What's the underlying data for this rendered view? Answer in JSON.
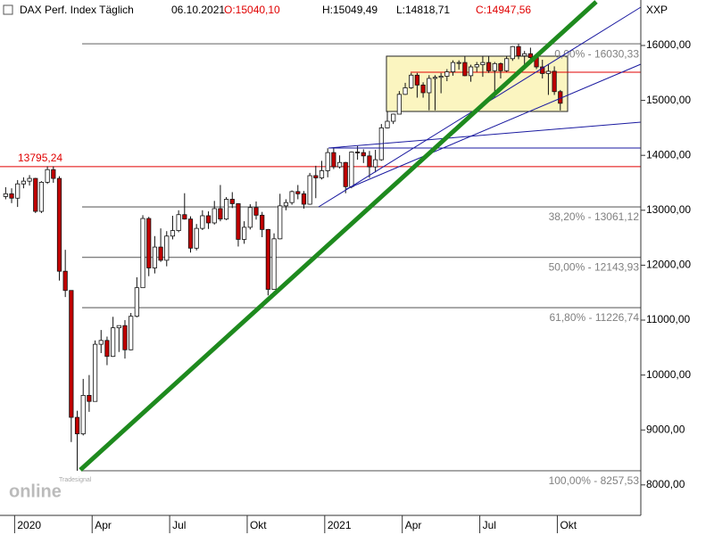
{
  "chart_data": {
    "type": "candlestick",
    "title": "DAX Perf. Index Täglich",
    "date": "06.10.2021",
    "quote": {
      "open": "O:15040,10",
      "high": "H:15049,49",
      "low": "L:14818,71",
      "close": "C:14947,56"
    },
    "y_axis_label": "XXP",
    "watermark": {
      "small": "Tradesignal",
      "big": "online"
    },
    "up_color": "#ffffff",
    "down_color": "#c00000",
    "ylim": [
      7445,
      16828
    ],
    "yticks": [
      {
        "value": 8000,
        "label": "8000,00"
      },
      {
        "value": 9000,
        "label": "9000,00"
      },
      {
        "value": 10000,
        "label": "10000,00"
      },
      {
        "value": 11000,
        "label": "11000,00"
      },
      {
        "value": 12000,
        "label": "12000,00"
      },
      {
        "value": 13000,
        "label": "13000,00"
      },
      {
        "value": 14000,
        "label": "14000,00"
      },
      {
        "value": 15000,
        "label": "15000,00"
      },
      {
        "value": 16000,
        "label": "16000,00"
      }
    ],
    "categories": [
      null,
      null,
      "2020",
      null,
      null,
      null,
      null,
      null,
      null,
      null,
      null,
      null,
      null,
      null,
      null,
      "Apr",
      null,
      null,
      null,
      null,
      null,
      null,
      null,
      null,
      null,
      null,
      null,
      null,
      "Jul",
      null,
      null,
      null,
      null,
      null,
      null,
      null,
      null,
      null,
      null,
      null,
      null,
      "Okt",
      null,
      null,
      null,
      null,
      null,
      null,
      null,
      null,
      null,
      null,
      null,
      null,
      "2021",
      null,
      null,
      null,
      null,
      null,
      null,
      null,
      null,
      null,
      null,
      null,
      null,
      "Apr",
      null,
      null,
      null,
      null,
      null,
      null,
      null,
      null,
      null,
      null,
      null,
      null,
      "Jul",
      null,
      null,
      null,
      null,
      null,
      null,
      null,
      null,
      null,
      null,
      null,
      null,
      "Okt",
      null,
      null,
      null,
      null,
      null,
      null,
      null,
      null,
      null,
      null,
      null,
      null,
      null
    ],
    "open": [
      13250,
      13300,
      13220,
      13480,
      13530,
      13580,
      12980,
      13510,
      13740,
      13580,
      11890,
      11540,
      9230,
      8930,
      9630,
      9520,
      10560,
      10630,
      10340,
      10860,
      10900,
      10460,
      11070,
      11590,
      12850,
      11950,
      12330,
      12090,
      12530,
      12630,
      12920,
      12840,
      12310,
      12670,
      12900,
      12770,
      13030,
      12840,
      13200,
      13120,
      12470,
      12690,
      13050,
      12910,
      12650,
      11560,
      12480,
      13080,
      13140,
      13340,
      13300,
      13110,
      13630,
      13590,
      13720,
      14050,
      13790,
      13870,
      13430,
      14060,
      14050,
      13990,
      13790,
      13920,
      14500,
      14620,
      14750,
      15110,
      15230,
      15460,
      15280,
      15140,
      15400,
      15420,
      15440,
      15520,
      15690,
      15690,
      15450,
      15610,
      15650,
      15690,
      15540,
      15670,
      15540,
      15760,
      15980,
      15810,
      15850,
      15780,
      15610,
      15490,
      15530,
      15160,
      null,
      null,
      null,
      null,
      null,
      null,
      null,
      null,
      null,
      null,
      null,
      null,
      null
    ],
    "high": [
      13420,
      13400,
      13550,
      13600,
      13640,
      13590,
      13530,
      13800,
      13800,
      13620,
      12280,
      11540,
      9350,
      9930,
      10000,
      10630,
      10820,
      10700,
      11060,
      10900,
      11000,
      11130,
      11780,
      12910,
      12880,
      12530,
      12670,
      12620,
      12900,
      13000,
      13310,
      12890,
      12750,
      13000,
      12980,
      13170,
      13460,
      13240,
      13330,
      13130,
      12800,
      13110,
      13160,
      12970,
      12660,
      12580,
      13300,
      13200,
      13360,
      13460,
      13350,
      13680,
      13810,
      13900,
      14130,
      14130,
      14000,
      13880,
      14070,
      14170,
      14110,
      14080,
      14100,
      14570,
      14800,
      14760,
      15170,
      15320,
      15500,
      15500,
      15330,
      15460,
      15460,
      15500,
      15570,
      15730,
      15730,
      15800,
      15650,
      15700,
      15810,
      15800,
      15700,
      15690,
      15800,
      15990,
      16030,
      15900,
      15960,
      15810,
      15740,
      15660,
      15620,
      15190,
      null,
      null,
      null,
      null,
      null,
      null,
      null,
      null,
      null,
      null,
      null,
      null,
      null
    ],
    "low": [
      13200,
      13130,
      13060,
      13400,
      13450,
      12950,
      12950,
      13480,
      13500,
      11720,
      11420,
      8780,
      8258,
      8900,
      9330,
      9520,
      10400,
      10180,
      10330,
      10420,
      10300,
      10450,
      11050,
      11590,
      11800,
      11850,
      12060,
      11980,
      12470,
      12600,
      12830,
      12230,
      12270,
      12640,
      12660,
      12740,
      12800,
      12820,
      13040,
      12340,
      12390,
      12650,
      12830,
      12510,
      11450,
      11560,
      12470,
      13000,
      13100,
      13200,
      13030,
      13100,
      13220,
      13560,
      13600,
      13750,
      13760,
      13310,
      13400,
      13920,
      13860,
      13590,
      13690,
      13900,
      14490,
      14570,
      14750,
      15100,
      15210,
      15050,
      15050,
      14820,
      14820,
      15130,
      15350,
      15450,
      15560,
      15440,
      15340,
      15520,
      15430,
      15500,
      15060,
      15400,
      15520,
      15720,
      15750,
      15650,
      15740,
      15570,
      15400,
      15100,
      15100,
      14818,
      null,
      null,
      null,
      null,
      null,
      null,
      null,
      null,
      null,
      null,
      null,
      null,
      null
    ],
    "close": [
      13300,
      13220,
      13480,
      13530,
      13580,
      12980,
      13510,
      13740,
      13580,
      11890,
      11540,
      9230,
      8930,
      9630,
      9520,
      10560,
      10630,
      10340,
      10860,
      10900,
      10460,
      11070,
      11590,
      12850,
      11950,
      12330,
      12090,
      12530,
      12630,
      12920,
      12840,
      12310,
      12670,
      12900,
      12770,
      13030,
      12840,
      13200,
      13120,
      12470,
      12690,
      13050,
      12910,
      12650,
      11560,
      12480,
      13080,
      13140,
      13340,
      13300,
      13110,
      13630,
      13590,
      13720,
      14050,
      13790,
      13870,
      13430,
      14060,
      14050,
      13990,
      13790,
      13920,
      14500,
      14620,
      14750,
      15110,
      15230,
      15460,
      15280,
      15140,
      15400,
      15420,
      15440,
      15520,
      15690,
      15690,
      15450,
      15610,
      15650,
      15690,
      15540,
      15670,
      15540,
      15760,
      15980,
      15810,
      15850,
      15780,
      15610,
      15490,
      15530,
      15160,
      14948,
      null,
      null,
      null,
      null,
      null,
      null,
      null,
      null,
      null,
      null,
      null,
      null,
      null
    ],
    "fib_color": "#808080",
    "fib_levels": [
      {
        "value": 16030.33,
        "label": "0,00% - 16030,33"
      },
      {
        "value": 13061.12,
        "label": "38,20% - 13061,12"
      },
      {
        "value": 12143.93,
        "label": "50,00% - 12143,93"
      },
      {
        "value": 11226.74,
        "label": "61,80% - 11226,74"
      },
      {
        "value": 8257.53,
        "label": "100,00% - 8257,53"
      }
    ],
    "resistance": {
      "value": 13795.24,
      "label": "13795,24",
      "color": "#e00000"
    }
  }
}
